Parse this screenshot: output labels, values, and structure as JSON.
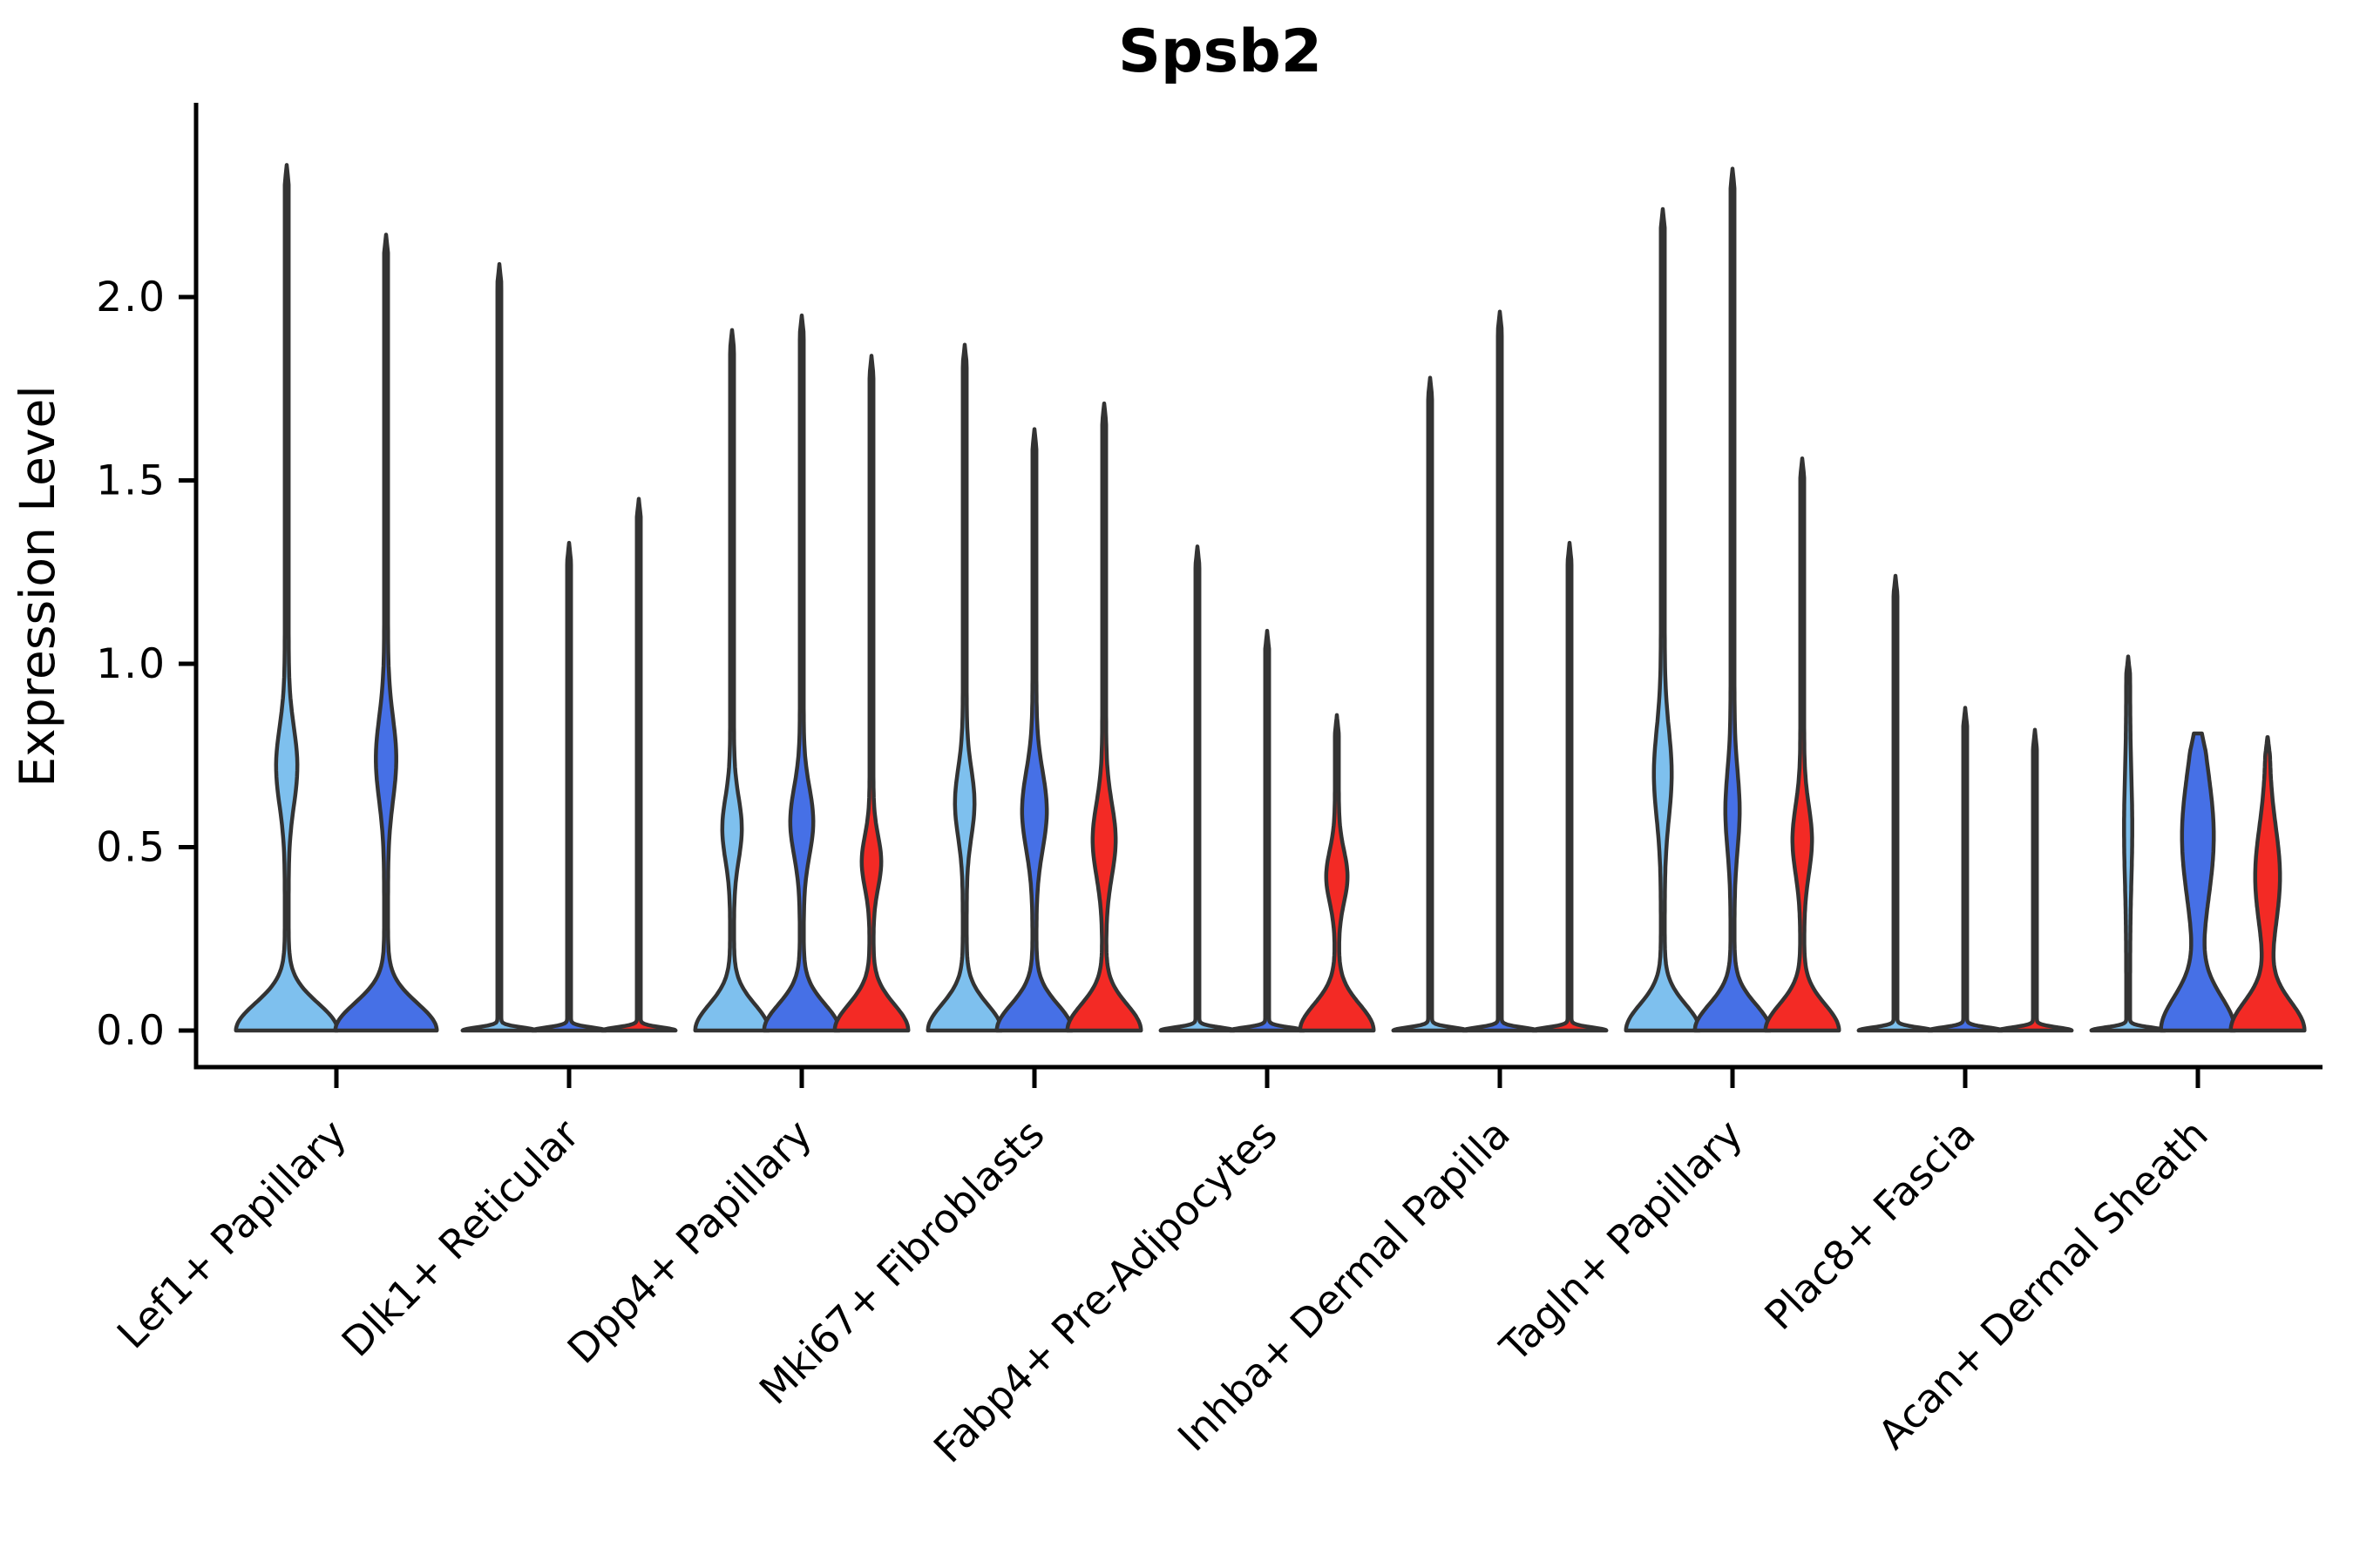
{
  "title": "Spsb2",
  "ylabel": "Expression Level",
  "yticks": [
    "0.0",
    "0.5",
    "1.0",
    "1.5",
    "2.0"
  ],
  "colors": {
    "outline": "#333333",
    "axis": "#000000",
    "background": "#ffffff"
  },
  "chart_data": {
    "type": "violin",
    "title": "Spsb2",
    "xlabel": "",
    "ylabel": "Expression Level",
    "ylim": [
      -0.1,
      2.5
    ],
    "ytick_values": [
      0.0,
      0.5,
      1.0,
      1.5,
      2.0
    ],
    "grid": false,
    "legend": "none",
    "categories": [
      "Lef1+ Papillary",
      "Dlk1+ Reticular",
      "Dpp4+ Papillary",
      "Mki67+ Fibroblasts",
      "Fabp4+ Pre-Adipocytes",
      "Inhba+ Dermal Papilla",
      "Tagln+ Papillary",
      "Plac8+ Fascia",
      "Acan+ Dermal Sheath"
    ],
    "splits": [
      {
        "id": "split-1",
        "color": "#7EC0EE"
      },
      {
        "id": "split-2",
        "color": "#4670E6"
      },
      {
        "id": "split-3",
        "color": "#F32A25"
      }
    ],
    "violins": [
      {
        "cat": 0,
        "split": 0,
        "max": 2.36,
        "w0": 56,
        "s0": 0.105,
        "w1": 10,
        "c1": 0.72,
        "s1": 0.15
      },
      {
        "cat": 0,
        "split": 1,
        "max": 2.17,
        "w0": 56,
        "s0": 0.105,
        "w1": 9.5,
        "c1": 0.74,
        "s1": 0.16
      },
      {
        "cat": 1,
        "split": 0,
        "max": 2.09,
        "w0": 40,
        "s0": 0.012,
        "w1": 0,
        "c1": 0,
        "s1": 1
      },
      {
        "cat": 1,
        "split": 1,
        "max": 1.33,
        "w0": 40,
        "s0": 0.012,
        "w1": 0,
        "c1": 0,
        "s1": 1
      },
      {
        "cat": 1,
        "split": 2,
        "max": 1.45,
        "w0": 40,
        "s0": 0.012,
        "w1": 0,
        "c1": 0,
        "s1": 1
      },
      {
        "cat": 2,
        "split": 0,
        "max": 1.91,
        "w0": 40,
        "s0": 0.1,
        "w1": 9,
        "c1": 0.55,
        "s1": 0.12
      },
      {
        "cat": 2,
        "split": 1,
        "max": 1.95,
        "w0": 41,
        "s0": 0.1,
        "w1": 11,
        "c1": 0.57,
        "s1": 0.13
      },
      {
        "cat": 2,
        "split": 2,
        "max": 1.84,
        "w0": 40,
        "s0": 0.1,
        "w1": 9,
        "c1": 0.46,
        "s1": 0.1
      },
      {
        "cat": 3,
        "split": 0,
        "max": 1.87,
        "w0": 40,
        "s0": 0.1,
        "w1": 9,
        "c1": 0.62,
        "s1": 0.13
      },
      {
        "cat": 3,
        "split": 1,
        "max": 1.64,
        "w0": 41,
        "s0": 0.1,
        "w1": 12,
        "c1": 0.6,
        "s1": 0.15
      },
      {
        "cat": 3,
        "split": 2,
        "max": 1.71,
        "w0": 40,
        "s0": 0.1,
        "w1": 11,
        "c1": 0.52,
        "s1": 0.14
      },
      {
        "cat": 4,
        "split": 0,
        "max": 1.32,
        "w0": 40,
        "s0": 0.012,
        "w1": 0,
        "c1": 0,
        "s1": 1
      },
      {
        "cat": 4,
        "split": 1,
        "max": 1.09,
        "w0": 40,
        "s0": 0.012,
        "w1": 0,
        "c1": 0,
        "s1": 1
      },
      {
        "cat": 4,
        "split": 2,
        "max": 0.86,
        "w0": 40,
        "s0": 0.1,
        "w1": 10,
        "c1": 0.42,
        "s1": 0.1
      },
      {
        "cat": 5,
        "split": 0,
        "max": 1.78,
        "w0": 40,
        "s0": 0.012,
        "w1": 0,
        "c1": 0,
        "s1": 1
      },
      {
        "cat": 5,
        "split": 1,
        "max": 1.96,
        "w0": 40,
        "s0": 0.012,
        "w1": 0,
        "c1": 0,
        "s1": 1
      },
      {
        "cat": 5,
        "split": 2,
        "max": 1.33,
        "w0": 40,
        "s0": 0.012,
        "w1": 0,
        "c1": 0,
        "s1": 1
      },
      {
        "cat": 6,
        "split": 0,
        "max": 2.24,
        "w0": 40,
        "s0": 0.1,
        "w1": 8,
        "c1": 0.7,
        "s1": 0.17
      },
      {
        "cat": 6,
        "split": 1,
        "max": 2.35,
        "w0": 41,
        "s0": 0.1,
        "w1": 6,
        "c1": 0.6,
        "s1": 0.15
      },
      {
        "cat": 6,
        "split": 2,
        "max": 1.56,
        "w0": 40,
        "s0": 0.1,
        "w1": 9,
        "c1": 0.52,
        "s1": 0.13
      },
      {
        "cat": 7,
        "split": 0,
        "max": 1.24,
        "w0": 40,
        "s0": 0.012,
        "w1": 0,
        "c1": 0,
        "s1": 1
      },
      {
        "cat": 7,
        "split": 1,
        "max": 0.88,
        "w0": 40,
        "s0": 0.012,
        "w1": 0,
        "c1": 0,
        "s1": 1
      },
      {
        "cat": 7,
        "split": 2,
        "max": 0.82,
        "w0": 40,
        "s0": 0.012,
        "w1": 0,
        "c1": 0,
        "s1": 1
      },
      {
        "cat": 8,
        "split": 0,
        "max": 1.02,
        "w0": 40,
        "s0": 0.012,
        "w1": 2.5,
        "c1": 0.55,
        "s1": 0.2
      },
      {
        "cat": 8,
        "split": 1,
        "max": 0.81,
        "w0": 40,
        "s0": 0.13,
        "w1": 16,
        "c1": 0.53,
        "s1": 0.25
      },
      {
        "cat": 8,
        "split": 2,
        "max": 0.8,
        "w0": 40,
        "s0": 0.11,
        "w1": 12,
        "c1": 0.42,
        "s1": 0.19
      }
    ]
  }
}
